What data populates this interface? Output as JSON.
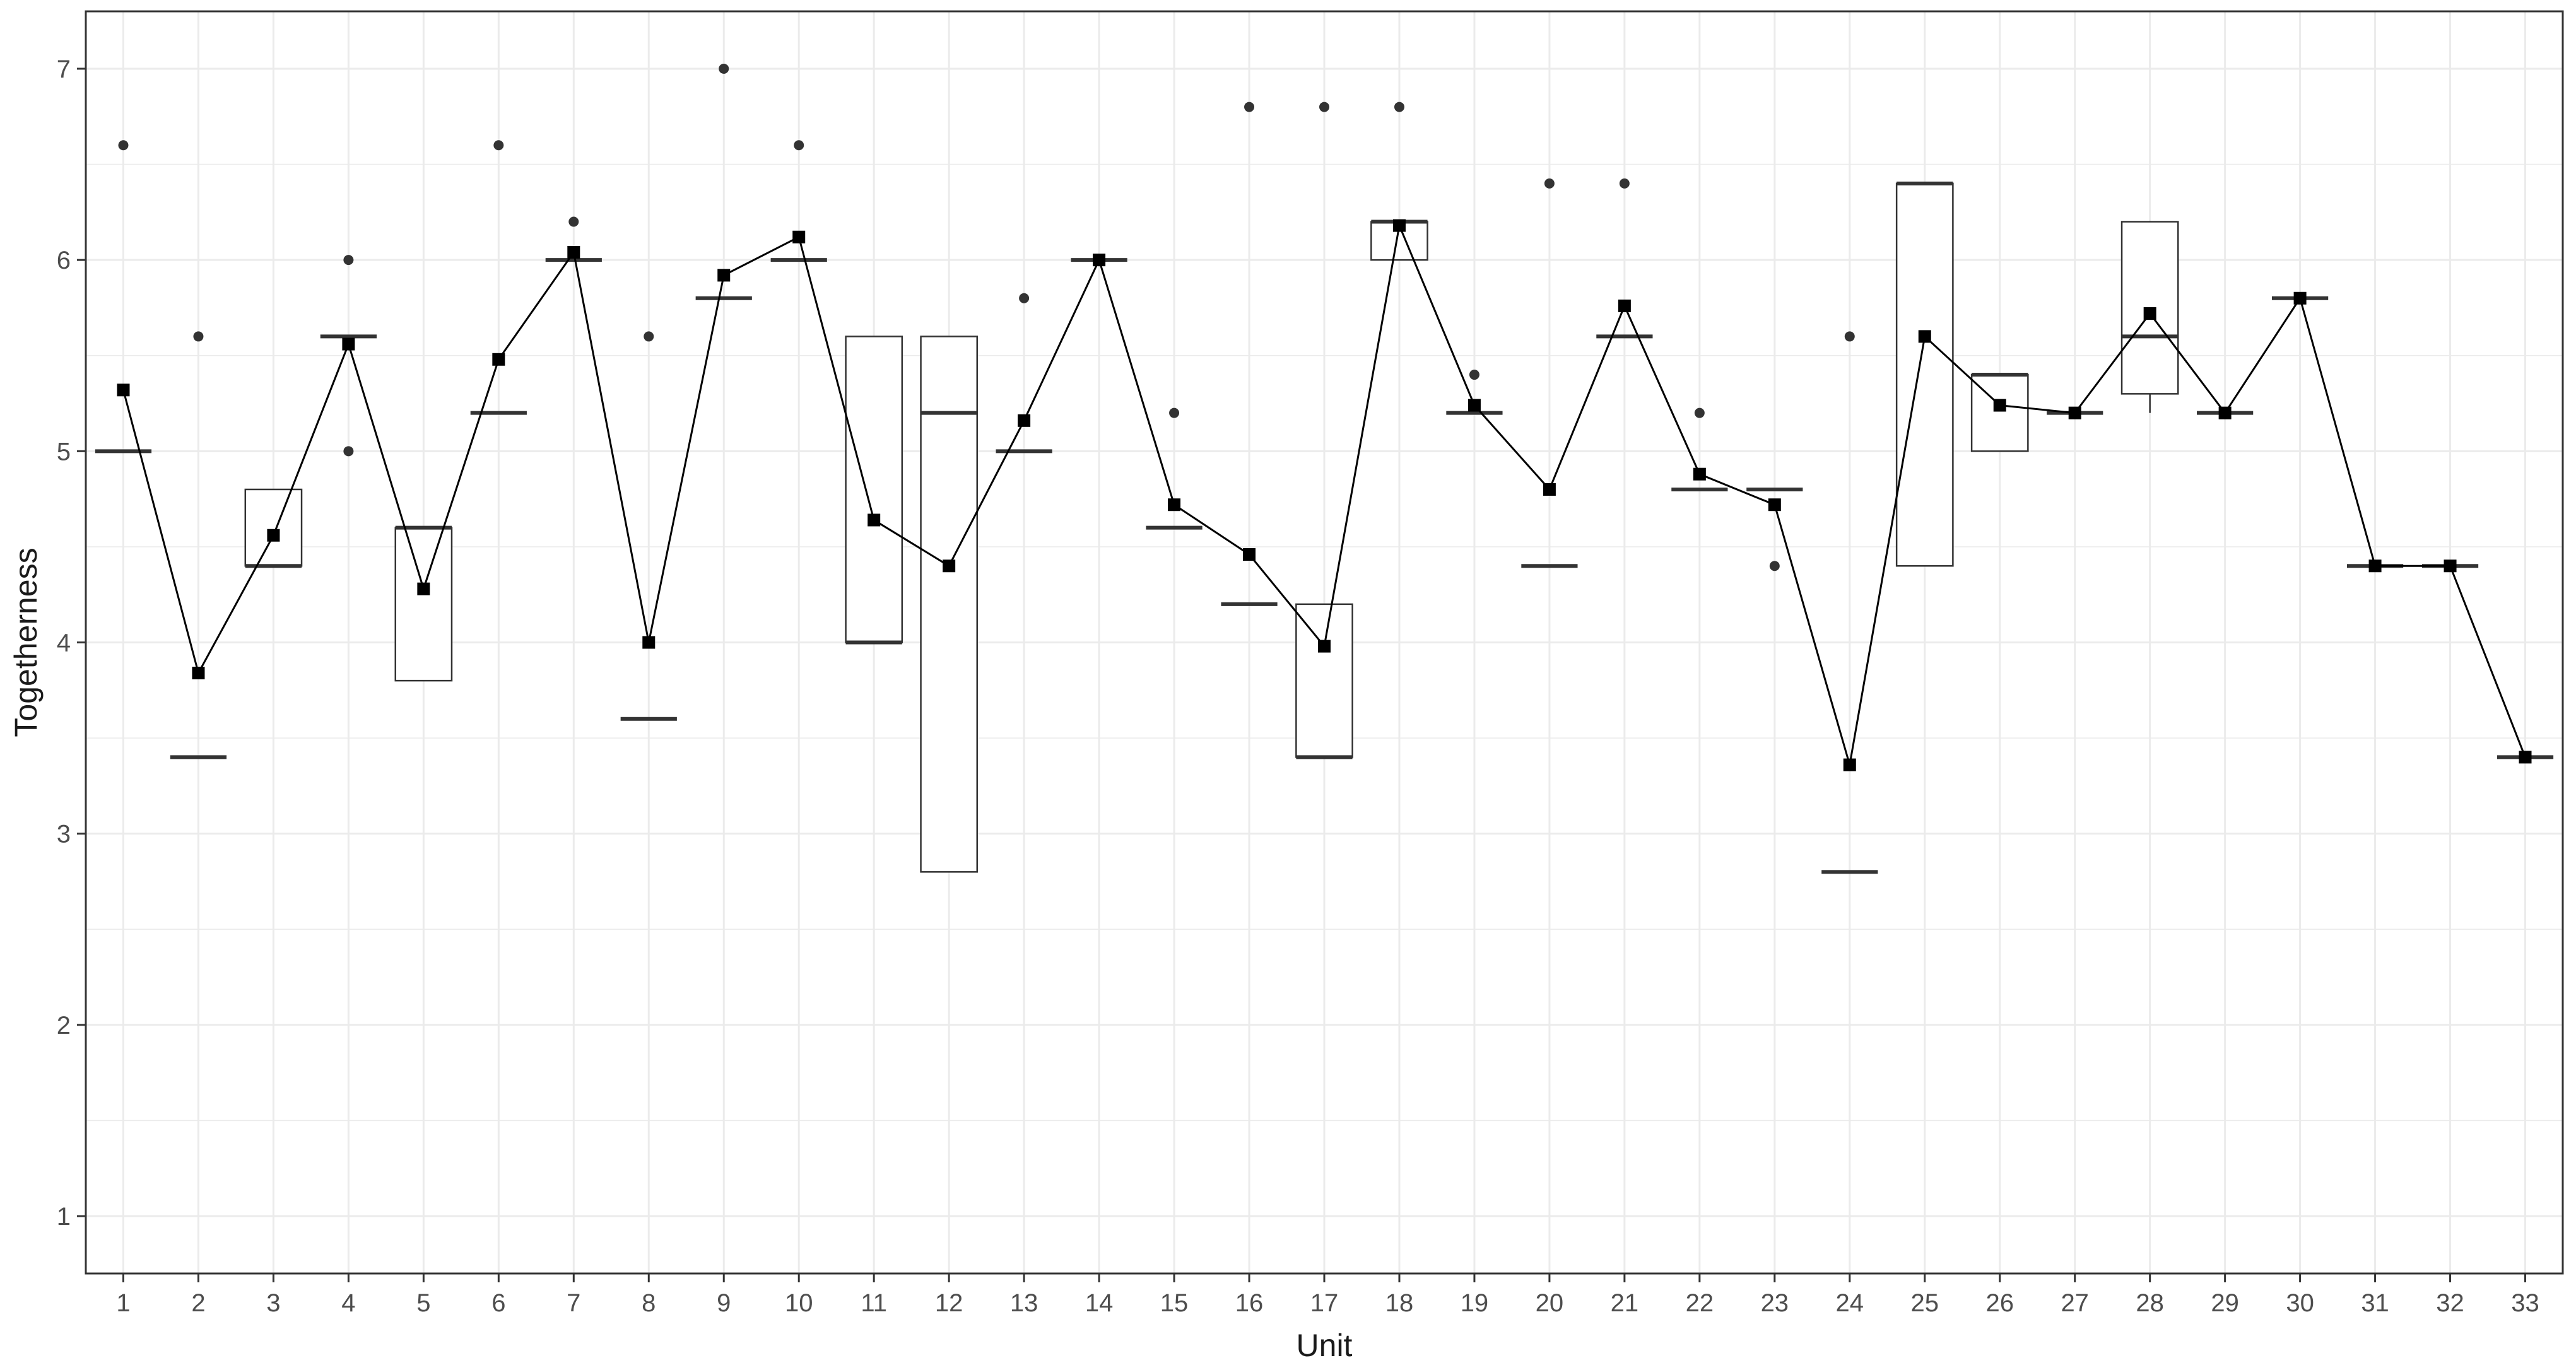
{
  "chart_data": {
    "type": "boxplot",
    "xlabel": "Unit",
    "ylabel": "Togetherness",
    "ylim": [
      0.7,
      7.3
    ],
    "yticks": [
      1,
      2,
      3,
      4,
      5,
      6,
      7
    ],
    "grid": true,
    "categories": [
      "1",
      "2",
      "3",
      "4",
      "5",
      "6",
      "7",
      "8",
      "9",
      "10",
      "11",
      "12",
      "13",
      "14",
      "15",
      "16",
      "17",
      "18",
      "19",
      "20",
      "21",
      "22",
      "23",
      "24",
      "25",
      "26",
      "27",
      "28",
      "29",
      "30",
      "31",
      "32",
      "33"
    ],
    "boxes": [
      {
        "unit": "1",
        "q1": 5.0,
        "median": 5.0,
        "q3": 5.0,
        "whisker_low": 5.0,
        "whisker_high": 5.0,
        "outliers": [
          6.6
        ]
      },
      {
        "unit": "2",
        "q1": 3.4,
        "median": 3.4,
        "q3": 3.4,
        "whisker_low": 3.4,
        "whisker_high": 3.4,
        "outliers": [
          5.6
        ]
      },
      {
        "unit": "3",
        "q1": 4.4,
        "median": 4.4,
        "q3": 4.8,
        "whisker_low": 4.4,
        "whisker_high": 4.8,
        "outliers": []
      },
      {
        "unit": "4",
        "q1": 5.6,
        "median": 5.6,
        "q3": 5.6,
        "whisker_low": 5.6,
        "whisker_high": 5.6,
        "outliers": [
          6.0,
          5.0
        ]
      },
      {
        "unit": "5",
        "q1": 3.8,
        "median": 4.6,
        "q3": 4.6,
        "whisker_low": 3.8,
        "whisker_high": 4.6,
        "outliers": []
      },
      {
        "unit": "6",
        "q1": 5.2,
        "median": 5.2,
        "q3": 5.2,
        "whisker_low": 5.2,
        "whisker_high": 5.2,
        "outliers": [
          6.6
        ]
      },
      {
        "unit": "7",
        "q1": 6.0,
        "median": 6.0,
        "q3": 6.0,
        "whisker_low": 6.0,
        "whisker_high": 6.0,
        "outliers": [
          6.2
        ]
      },
      {
        "unit": "8",
        "q1": 3.6,
        "median": 3.6,
        "q3": 3.6,
        "whisker_low": 3.6,
        "whisker_high": 3.6,
        "outliers": [
          5.6
        ]
      },
      {
        "unit": "9",
        "q1": 5.8,
        "median": 5.8,
        "q3": 5.8,
        "whisker_low": 5.8,
        "whisker_high": 5.8,
        "outliers": [
          7.0
        ]
      },
      {
        "unit": "10",
        "q1": 6.0,
        "median": 6.0,
        "q3": 6.0,
        "whisker_low": 6.0,
        "whisker_high": 6.0,
        "outliers": [
          6.6
        ]
      },
      {
        "unit": "11",
        "q1": 4.0,
        "median": 4.0,
        "q3": 5.6,
        "whisker_low": 4.0,
        "whisker_high": 5.6,
        "outliers": []
      },
      {
        "unit": "12",
        "q1": 2.8,
        "median": 5.2,
        "q3": 5.6,
        "whisker_low": 2.8,
        "whisker_high": 5.6,
        "outliers": []
      },
      {
        "unit": "13",
        "q1": 5.0,
        "median": 5.0,
        "q3": 5.0,
        "whisker_low": 5.0,
        "whisker_high": 5.0,
        "outliers": [
          5.8
        ]
      },
      {
        "unit": "14",
        "q1": 6.0,
        "median": 6.0,
        "q3": 6.0,
        "whisker_low": 6.0,
        "whisker_high": 6.0,
        "outliers": []
      },
      {
        "unit": "15",
        "q1": 4.6,
        "median": 4.6,
        "q3": 4.6,
        "whisker_low": 4.6,
        "whisker_high": 4.6,
        "outliers": [
          5.2
        ]
      },
      {
        "unit": "16",
        "q1": 4.2,
        "median": 4.2,
        "q3": 4.2,
        "whisker_low": 4.2,
        "whisker_high": 4.2,
        "outliers": [
          6.8
        ]
      },
      {
        "unit": "17",
        "q1": 3.4,
        "median": 3.4,
        "q3": 4.2,
        "whisker_low": 3.4,
        "whisker_high": 4.2,
        "outliers": [
          6.8
        ]
      },
      {
        "unit": "18",
        "q1": 6.0,
        "median": 6.2,
        "q3": 6.2,
        "whisker_low": 6.0,
        "whisker_high": 6.2,
        "outliers": [
          6.8
        ]
      },
      {
        "unit": "19",
        "q1": 5.2,
        "median": 5.2,
        "q3": 5.2,
        "whisker_low": 5.2,
        "whisker_high": 5.2,
        "outliers": [
          5.4
        ]
      },
      {
        "unit": "20",
        "q1": 4.4,
        "median": 4.4,
        "q3": 4.4,
        "whisker_low": 4.4,
        "whisker_high": 4.4,
        "outliers": [
          6.4
        ]
      },
      {
        "unit": "21",
        "q1": 5.6,
        "median": 5.6,
        "q3": 5.6,
        "whisker_low": 5.6,
        "whisker_high": 5.6,
        "outliers": [
          6.4
        ]
      },
      {
        "unit": "22",
        "q1": 4.8,
        "median": 4.8,
        "q3": 4.8,
        "whisker_low": 4.8,
        "whisker_high": 4.8,
        "outliers": [
          5.2
        ]
      },
      {
        "unit": "23",
        "q1": 4.8,
        "median": 4.8,
        "q3": 4.8,
        "whisker_low": 4.8,
        "whisker_high": 4.8,
        "outliers": [
          4.4
        ]
      },
      {
        "unit": "24",
        "q1": 2.8,
        "median": 2.8,
        "q3": 2.8,
        "whisker_low": 2.8,
        "whisker_high": 2.8,
        "outliers": [
          5.6
        ]
      },
      {
        "unit": "25",
        "q1": 4.4,
        "median": 6.4,
        "q3": 6.4,
        "whisker_low": 4.4,
        "whisker_high": 6.4,
        "outliers": []
      },
      {
        "unit": "26",
        "q1": 5.0,
        "median": 5.4,
        "q3": 5.4,
        "whisker_low": 5.0,
        "whisker_high": 5.4,
        "outliers": []
      },
      {
        "unit": "27",
        "q1": 5.2,
        "median": 5.2,
        "q3": 5.2,
        "whisker_low": 5.2,
        "whisker_high": 5.2,
        "outliers": []
      },
      {
        "unit": "28",
        "q1": 5.3,
        "median": 5.6,
        "q3": 6.2,
        "whisker_low": 5.2,
        "whisker_high": 6.2,
        "outliers": []
      },
      {
        "unit": "29",
        "q1": 5.2,
        "median": 5.2,
        "q3": 5.2,
        "whisker_low": 5.2,
        "whisker_high": 5.2,
        "outliers": []
      },
      {
        "unit": "30",
        "q1": 5.8,
        "median": 5.8,
        "q3": 5.8,
        "whisker_low": 5.8,
        "whisker_high": 5.8,
        "outliers": []
      },
      {
        "unit": "31",
        "q1": 4.4,
        "median": 4.4,
        "q3": 4.4,
        "whisker_low": 4.4,
        "whisker_high": 4.4,
        "outliers": []
      },
      {
        "unit": "32",
        "q1": 4.4,
        "median": 4.4,
        "q3": 4.4,
        "whisker_low": 4.4,
        "whisker_high": 4.4,
        "outliers": []
      },
      {
        "unit": "33",
        "q1": 3.4,
        "median": 3.4,
        "q3": 3.4,
        "whisker_low": 3.4,
        "whisker_high": 3.4,
        "outliers": []
      }
    ],
    "mean_line": {
      "x": [
        "1",
        "2",
        "3",
        "4",
        "5",
        "6",
        "7",
        "8",
        "9",
        "10",
        "11",
        "12",
        "13",
        "14",
        "15",
        "16",
        "17",
        "18",
        "19",
        "20",
        "21",
        "22",
        "23",
        "24",
        "25",
        "26",
        "27",
        "28",
        "29",
        "30",
        "31",
        "32",
        "33"
      ],
      "y": [
        5.32,
        3.84,
        4.56,
        5.56,
        4.28,
        5.48,
        6.04,
        4.0,
        5.92,
        6.12,
        4.64,
        4.4,
        5.16,
        6.0,
        4.72,
        4.46,
        3.98,
        6.18,
        5.24,
        4.8,
        5.76,
        4.88,
        4.72,
        3.36,
        5.6,
        5.24,
        5.2,
        5.72,
        5.2,
        5.8,
        4.4,
        4.4,
        3.4
      ]
    },
    "colors": {
      "grid": "#ebebeb",
      "panel_border": "#333333",
      "box": "#333333",
      "outlier": "#333333",
      "mean": "#000000"
    }
  }
}
